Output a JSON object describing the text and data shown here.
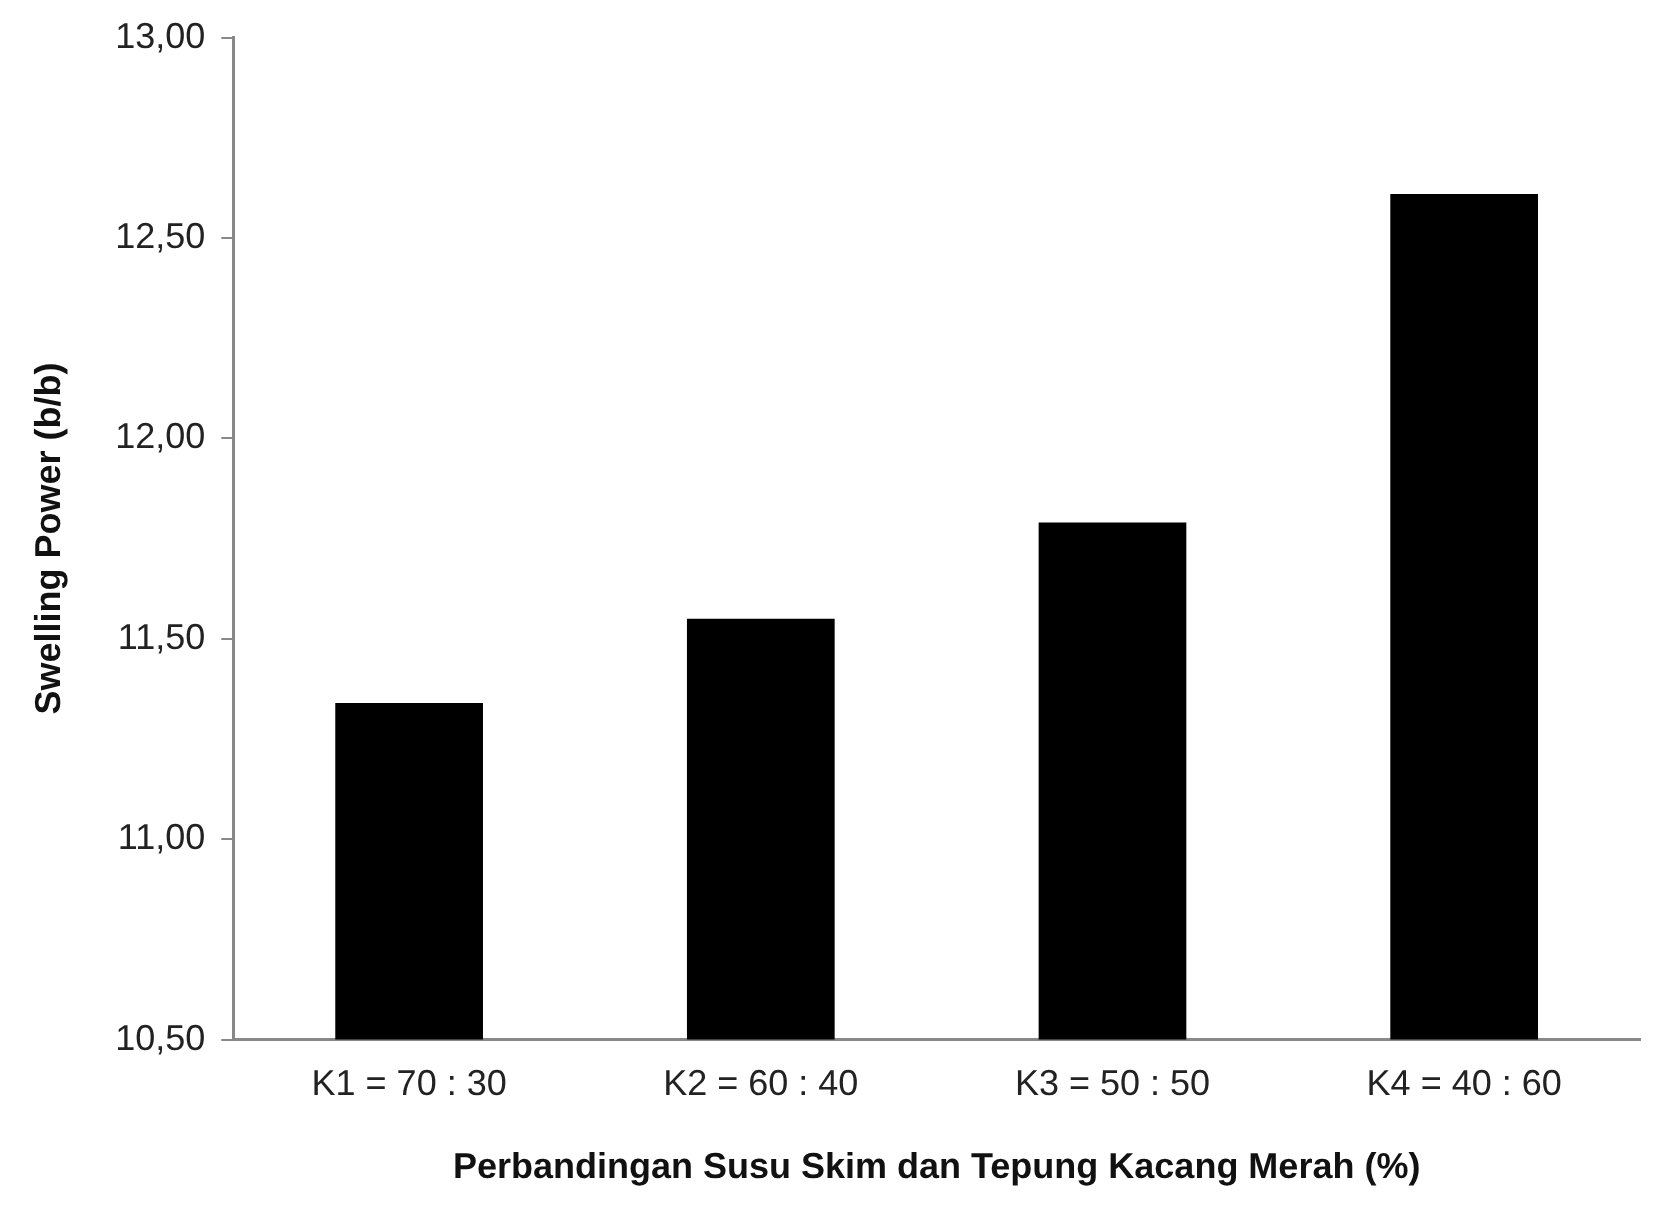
{
  "chart_data": {
    "type": "bar",
    "xlabel": "Perbandingan Susu Skim dan Tepung Kacang Merah (%)",
    "ylabel": "Swelling Power (b/b)",
    "categories": [
      "K1 = 70 : 30",
      "K2 = 60 : 40",
      "K3 = 50 : 50",
      "K4 = 40 : 60"
    ],
    "values": [
      11.34,
      11.55,
      11.79,
      12.61
    ],
    "color": "#000000",
    "ylim": [
      10.5,
      13
    ],
    "yticks": [
      {
        "value": 10.5,
        "label": "10,50"
      },
      {
        "value": 11,
        "label": "11,00"
      },
      {
        "value": 11.5,
        "label": "11,50"
      },
      {
        "value": 12,
        "label": "12,00"
      },
      {
        "value": 12.5,
        "label": "12,50"
      },
      {
        "value": 13,
        "label": "13,00"
      }
    ],
    "grid": false,
    "legend": false
  }
}
